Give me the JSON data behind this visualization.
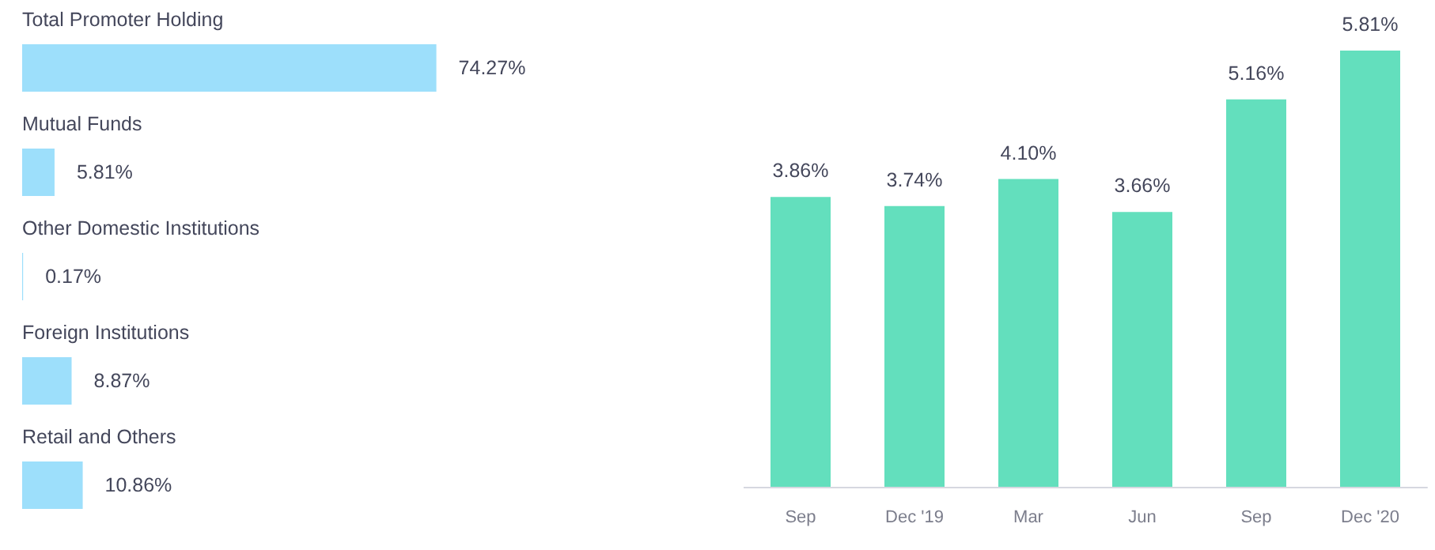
{
  "chart_data": [
    {
      "type": "bar",
      "orientation": "horizontal",
      "categories": [
        "Total Promoter Holding",
        "Mutual Funds",
        "Other Domestic Institutions",
        "Foreign Institutions",
        "Retail and Others"
      ],
      "values": [
        74.27,
        5.81,
        0.17,
        8.87,
        10.86
      ],
      "value_labels": [
        "74.27%",
        "5.81%",
        "0.17%",
        "8.87%",
        "10.86%"
      ],
      "color": "#9ddffb",
      "grid": false
    },
    {
      "type": "bar",
      "categories": [
        "Sep",
        "Dec '19",
        "Mar",
        "Jun",
        "Sep",
        "Dec '20"
      ],
      "values": [
        3.86,
        3.74,
        4.1,
        3.66,
        5.16,
        5.81
      ],
      "value_labels": [
        "3.86%",
        "3.74%",
        "4.10%",
        "3.66%",
        "5.16%",
        "5.81%"
      ],
      "color": "#63dfbd",
      "grid": false,
      "tick_labels": "x"
    }
  ]
}
